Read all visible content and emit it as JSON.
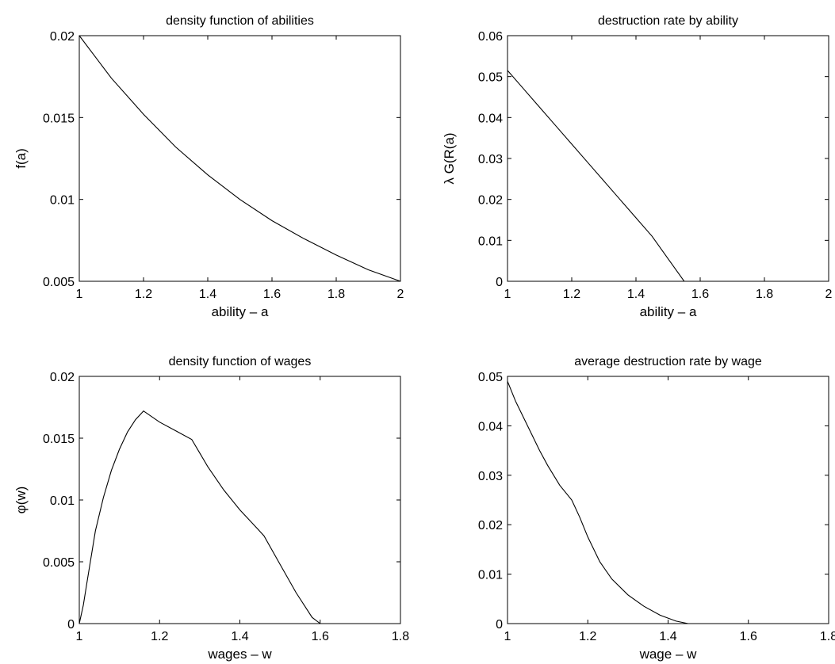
{
  "chart_data": [
    {
      "type": "line",
      "title": "density function of abilities",
      "xlabel": "ability – a",
      "ylabel": "f(a)",
      "xlim": [
        1,
        2
      ],
      "ylim": [
        0.005,
        0.02
      ],
      "xticks": [
        1,
        1.2,
        1.4,
        1.6,
        1.8,
        2
      ],
      "xtick_labels": [
        "1",
        "1.2",
        "1.4",
        "1.6",
        "1.8",
        "2"
      ],
      "yticks": [
        0.005,
        0.01,
        0.015,
        0.02
      ],
      "ytick_labels": [
        "0.005",
        "0.01",
        "0.015",
        "0.02"
      ],
      "grid": false,
      "series": [
        {
          "x": [
            1.0,
            1.1,
            1.2,
            1.3,
            1.4,
            1.5,
            1.6,
            1.7,
            1.8,
            1.9,
            2.0
          ],
          "y": [
            0.02,
            0.0174,
            0.0152,
            0.0132,
            0.0115,
            0.01,
            0.0087,
            0.0076,
            0.0066,
            0.0057,
            0.005
          ]
        }
      ]
    },
    {
      "type": "line",
      "title": "destruction rate by ability",
      "xlabel": "ability – a",
      "ylabel": "λ G(R(a)",
      "xlim": [
        1,
        2
      ],
      "ylim": [
        0,
        0.06
      ],
      "xticks": [
        1,
        1.2,
        1.4,
        1.6,
        1.8,
        2
      ],
      "xtick_labels": [
        "1",
        "1.2",
        "1.4",
        "1.6",
        "1.8",
        "2"
      ],
      "yticks": [
        0,
        0.01,
        0.02,
        0.03,
        0.04,
        0.05,
        0.06
      ],
      "ytick_labels": [
        "0",
        "0.01",
        "0.02",
        "0.03",
        "0.04",
        "0.05",
        "0.06"
      ],
      "grid": false,
      "series": [
        {
          "x": [
            1.0,
            1.05,
            1.1,
            1.15,
            1.2,
            1.25,
            1.3,
            1.35,
            1.4,
            1.45,
            1.5,
            1.55,
            1.6,
            1.7,
            1.8,
            1.9,
            2.0
          ],
          "y": [
            0.0515,
            0.047,
            0.0425,
            0.038,
            0.0335,
            0.029,
            0.0245,
            0.02,
            0.0155,
            0.011,
            0.0055,
            0.0,
            0.0,
            0.0,
            0.0,
            0.0,
            0.0
          ]
        }
      ]
    },
    {
      "type": "line",
      "title": "density function of wages",
      "xlabel": "wages – w",
      "ylabel": "φ(w)",
      "xlim": [
        1,
        1.8
      ],
      "ylim": [
        0,
        0.02
      ],
      "xticks": [
        1,
        1.2,
        1.4,
        1.6,
        1.8
      ],
      "xtick_labels": [
        "1",
        "1.2",
        "1.4",
        "1.6",
        "1.8"
      ],
      "yticks": [
        0,
        0.005,
        0.01,
        0.015,
        0.02
      ],
      "ytick_labels": [
        "0",
        "0.005",
        "0.01",
        "0.015",
        "0.02"
      ],
      "grid": false,
      "series": [
        {
          "x": [
            1.0,
            1.01,
            1.02,
            1.04,
            1.06,
            1.08,
            1.1,
            1.12,
            1.14,
            1.16,
            1.2,
            1.24,
            1.28,
            1.32,
            1.36,
            1.4,
            1.44,
            1.46,
            1.5,
            1.54,
            1.58,
            1.6
          ],
          "y": [
            0.0,
            0.0015,
            0.0035,
            0.0075,
            0.0102,
            0.0124,
            0.0141,
            0.0155,
            0.0165,
            0.0172,
            0.0163,
            0.0156,
            0.0149,
            0.0127,
            0.0108,
            0.0092,
            0.0078,
            0.0071,
            0.0048,
            0.0025,
            0.0005,
            0.0
          ]
        }
      ]
    },
    {
      "type": "line",
      "title": "average destruction rate by wage",
      "xlabel": "wage – w",
      "ylabel": "",
      "xlim": [
        1,
        1.8
      ],
      "ylim": [
        0,
        0.05
      ],
      "xticks": [
        1,
        1.2,
        1.4,
        1.6,
        1.8
      ],
      "xtick_labels": [
        "1",
        "1.2",
        "1.4",
        "1.6",
        "1.8"
      ],
      "yticks": [
        0,
        0.01,
        0.02,
        0.03,
        0.04,
        0.05
      ],
      "ytick_labels": [
        "0",
        "0.01",
        "0.02",
        "0.03",
        "0.04",
        "0.05"
      ],
      "grid": false,
      "series": [
        {
          "x": [
            1.0,
            1.02,
            1.05,
            1.08,
            1.1,
            1.13,
            1.16,
            1.18,
            1.2,
            1.23,
            1.26,
            1.3,
            1.34,
            1.38,
            1.42,
            1.45,
            1.5,
            1.6,
            1.7,
            1.8
          ],
          "y": [
            0.049,
            0.045,
            0.04,
            0.035,
            0.032,
            0.028,
            0.025,
            0.0215,
            0.0175,
            0.0125,
            0.009,
            0.0058,
            0.0035,
            0.0017,
            0.0005,
            0.0,
            0.0,
            0.0,
            0.0,
            0.0
          ]
        }
      ]
    }
  ]
}
